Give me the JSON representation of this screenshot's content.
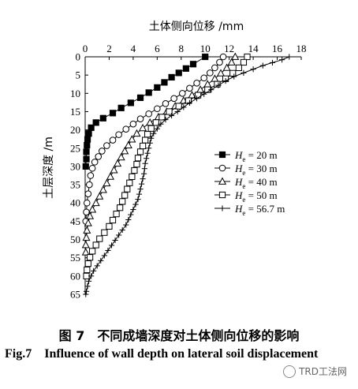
{
  "chart_data": {
    "type": "scatter",
    "xlabel": "土体侧向位移 /mm",
    "ylabel": "土层深度 /m",
    "xlim": [
      0,
      18
    ],
    "ylim": [
      0,
      65
    ],
    "x_ticks": [
      0,
      2,
      4,
      6,
      8,
      10,
      12,
      14,
      16,
      18
    ],
    "y_ticks": [
      0,
      5,
      10,
      15,
      20,
      25,
      30,
      35,
      40,
      45,
      50,
      55,
      60,
      65
    ],
    "x_axis_position": "top",
    "y_axis_inverted": true,
    "legend_position": "right",
    "legend": [
      {
        "prefix": "H",
        "sub": "e",
        "text": " = 20 m",
        "marker": "filled-square"
      },
      {
        "prefix": "H",
        "sub": "e",
        "text": " = 30 m",
        "marker": "circle"
      },
      {
        "prefix": "H",
        "sub": "e",
        "text": " = 40 m",
        "marker": "triangle"
      },
      {
        "prefix": "H",
        "sub": "e",
        "text": " = 50 m",
        "marker": "square"
      },
      {
        "prefix": "H",
        "sub": "e",
        "text": " = 56.7 m",
        "marker": "plus"
      }
    ],
    "series": [
      {
        "name": "He = 20 m",
        "marker": "filled-square",
        "points": [
          [
            10,
            0
          ],
          [
            9,
            2
          ],
          [
            8.4,
            3.2
          ],
          [
            7.8,
            4.4
          ],
          [
            7.2,
            5.6
          ],
          [
            6.6,
            7
          ],
          [
            6,
            8.4
          ],
          [
            5.3,
            9.8
          ],
          [
            4.6,
            11.2
          ],
          [
            3.8,
            12.6
          ],
          [
            3,
            14
          ],
          [
            2.3,
            15.4
          ],
          [
            1.5,
            16.8
          ],
          [
            0.9,
            18
          ],
          [
            0.5,
            19.4
          ],
          [
            0.3,
            21
          ],
          [
            0.2,
            22.6
          ],
          [
            0.15,
            24.2
          ],
          [
            0.1,
            26
          ],
          [
            0.1,
            28
          ],
          [
            0.05,
            30
          ]
        ]
      },
      {
        "name": "He = 30 m",
        "marker": "circle",
        "points": [
          [
            11.5,
            0
          ],
          [
            11.2,
            1.5
          ],
          [
            10.8,
            3
          ],
          [
            10.4,
            4.4
          ],
          [
            9.9,
            5.8
          ],
          [
            9.3,
            7.2
          ],
          [
            8.7,
            8.6
          ],
          [
            8.1,
            10
          ],
          [
            7.4,
            11.4
          ],
          [
            6.7,
            12.8
          ],
          [
            6,
            14.2
          ],
          [
            5.3,
            15.6
          ],
          [
            4.6,
            17
          ],
          [
            4,
            18.4
          ],
          [
            3.4,
            19.8
          ],
          [
            2.8,
            21.3
          ],
          [
            2.3,
            22.8
          ],
          [
            1.8,
            24.3
          ],
          [
            1.4,
            25.8
          ],
          [
            1.1,
            27.3
          ],
          [
            0.8,
            28.8
          ],
          [
            0.6,
            30.5
          ],
          [
            0.45,
            32.5
          ],
          [
            0.35,
            35
          ],
          [
            0.25,
            37.5
          ],
          [
            0.15,
            40
          ],
          [
            0.1,
            42.5
          ],
          [
            0.05,
            45
          ]
        ]
      },
      {
        "name": "He = 40 m",
        "marker": "triangle",
        "points": [
          [
            12.5,
            0
          ],
          [
            12.2,
            1.5
          ],
          [
            11.8,
            3
          ],
          [
            11.3,
            4.5
          ],
          [
            10.8,
            6
          ],
          [
            10.2,
            7.5
          ],
          [
            9.6,
            9
          ],
          [
            8.9,
            10.5
          ],
          [
            8.2,
            12
          ],
          [
            7.5,
            13.5
          ],
          [
            6.8,
            15
          ],
          [
            6.1,
            16.5
          ],
          [
            5.4,
            18
          ],
          [
            4.8,
            19.5
          ],
          [
            4.3,
            21
          ],
          [
            3.9,
            22.6
          ],
          [
            3.6,
            24.2
          ],
          [
            3.3,
            25.8
          ],
          [
            3,
            27.5
          ],
          [
            2.7,
            29.2
          ],
          [
            2.4,
            31
          ],
          [
            2.1,
            32.8
          ],
          [
            1.8,
            34.6
          ],
          [
            1.5,
            36.4
          ],
          [
            1.2,
            38.2
          ],
          [
            0.9,
            40
          ],
          [
            0.6,
            41.8
          ],
          [
            0.4,
            43.6
          ],
          [
            0.25,
            45.5
          ],
          [
            0.15,
            47.5
          ],
          [
            0.1,
            49.5
          ],
          [
            0.05,
            51.5
          ],
          [
            0.05,
            53.5
          ]
        ]
      },
      {
        "name": "He = 50 m",
        "marker": "square",
        "points": [
          [
            13.5,
            0
          ],
          [
            13.2,
            1.5
          ],
          [
            12.8,
            3
          ],
          [
            12.3,
            4.5
          ],
          [
            11.7,
            6
          ],
          [
            11,
            7.5
          ],
          [
            10.2,
            9
          ],
          [
            9.4,
            10.5
          ],
          [
            8.6,
            12
          ],
          [
            7.8,
            13.5
          ],
          [
            7,
            15
          ],
          [
            6.4,
            16.5
          ],
          [
            5.9,
            18
          ],
          [
            5.5,
            19.6
          ],
          [
            5.2,
            21.2
          ],
          [
            5,
            22.8
          ],
          [
            4.8,
            24.4
          ],
          [
            4.6,
            26
          ],
          [
            4.4,
            27.7
          ],
          [
            4.3,
            29.4
          ],
          [
            4.1,
            31.1
          ],
          [
            3.9,
            32.8
          ],
          [
            3.7,
            34.5
          ],
          [
            3.5,
            36.2
          ],
          [
            3.3,
            37.9
          ],
          [
            3.1,
            39.6
          ],
          [
            2.9,
            41.3
          ],
          [
            2.6,
            43
          ],
          [
            2.3,
            44.7
          ],
          [
            2,
            46.4
          ],
          [
            1.6,
            48.1
          ],
          [
            1.2,
            49.8
          ],
          [
            0.9,
            51.5
          ],
          [
            0.6,
            53.2
          ],
          [
            0.4,
            54.9
          ],
          [
            0.25,
            56.6
          ],
          [
            0.15,
            58.3
          ],
          [
            0.1,
            60
          ]
        ]
      },
      {
        "name": "He = 56.7 m",
        "marker": "plus",
        "points": [
          [
            17,
            0
          ],
          [
            16.4,
            0.8
          ],
          [
            15.6,
            1.6
          ],
          [
            14.8,
            2.4
          ],
          [
            14,
            3.4
          ],
          [
            13.2,
            4.4
          ],
          [
            12.4,
            5.4
          ],
          [
            11.7,
            6.6
          ],
          [
            11.1,
            7.8
          ],
          [
            10.5,
            9
          ],
          [
            9.9,
            10.2
          ],
          [
            9.3,
            11.4
          ],
          [
            8.7,
            12.6
          ],
          [
            8.2,
            13.8
          ],
          [
            7.7,
            15
          ],
          [
            7.2,
            16.1
          ],
          [
            6.7,
            17.2
          ],
          [
            6.3,
            18.4
          ],
          [
            6,
            19.7
          ],
          [
            5.7,
            21
          ],
          [
            5.5,
            22.3
          ],
          [
            5.4,
            23.6
          ],
          [
            5.3,
            25
          ],
          [
            5.2,
            26.4
          ],
          [
            5.1,
            27.8
          ],
          [
            5,
            29.2
          ],
          [
            4.95,
            30.6
          ],
          [
            4.9,
            32
          ],
          [
            4.8,
            33.4
          ],
          [
            4.7,
            34.8
          ],
          [
            4.6,
            36.2
          ],
          [
            4.5,
            37.6
          ],
          [
            4.4,
            39
          ],
          [
            4.2,
            40.4
          ],
          [
            4,
            41.8
          ],
          [
            3.8,
            43.2
          ],
          [
            3.6,
            44.6
          ],
          [
            3.4,
            46
          ],
          [
            3.1,
            47.4
          ],
          [
            2.8,
            48.8
          ],
          [
            2.5,
            50.2
          ],
          [
            2.2,
            51.6
          ],
          [
            1.9,
            53
          ],
          [
            1.6,
            54.4
          ],
          [
            1.3,
            55.8
          ],
          [
            1,
            57.2
          ],
          [
            0.7,
            58.6
          ],
          [
            0.5,
            60
          ],
          [
            0.3,
            61.4
          ],
          [
            0.2,
            62.8
          ],
          [
            0.1,
            64.2
          ],
          [
            0.05,
            65
          ]
        ]
      }
    ]
  },
  "caption": {
    "cn": "图 7　不同成墙深度对土体侧向位移的影响",
    "en": "Fig.7　Influence of wall depth on lateral soil displacement"
  },
  "watermark": "TRD工法网"
}
